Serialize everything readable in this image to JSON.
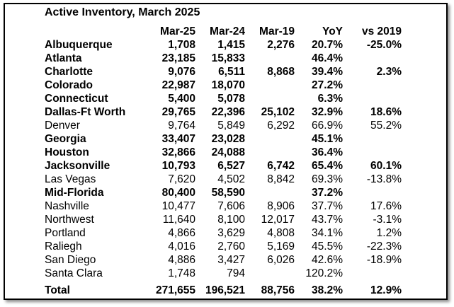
{
  "title": "Active Inventory, March 2025",
  "columns": [
    "Mar-25",
    "Mar-24",
    "Mar-19",
    "YoY",
    "vs 2019"
  ],
  "rows": [
    {
      "name": "Albuquerque",
      "bold": true,
      "mar25": "1,708",
      "mar24": "1,415",
      "mar19": "2,276",
      "yoy": "20.7%",
      "vs2019": "-25.0%"
    },
    {
      "name": "Atlanta",
      "bold": true,
      "mar25": "23,185",
      "mar24": "15,833",
      "mar19": "",
      "yoy": "46.4%",
      "vs2019": ""
    },
    {
      "name": "Charlotte",
      "bold": true,
      "mar25": "9,076",
      "mar24": "6,511",
      "mar19": "8,868",
      "yoy": "39.4%",
      "vs2019": "2.3%"
    },
    {
      "name": "Colorado",
      "bold": true,
      "mar25": "22,987",
      "mar24": "18,070",
      "mar19": "",
      "yoy": "27.2%",
      "vs2019": ""
    },
    {
      "name": "Connecticut",
      "bold": true,
      "mar25": "5,400",
      "mar24": "5,078",
      "mar19": "",
      "yoy": "6.3%",
      "vs2019": ""
    },
    {
      "name": "Dallas-Ft Worth",
      "bold": true,
      "mar25": "29,765",
      "mar24": "22,396",
      "mar19": "25,102",
      "yoy": "32.9%",
      "vs2019": "18.6%"
    },
    {
      "name": "Denver",
      "bold": false,
      "mar25": "9,764",
      "mar24": "5,849",
      "mar19": "6,292",
      "yoy": "66.9%",
      "vs2019": "55.2%"
    },
    {
      "name": "Georgia",
      "bold": true,
      "mar25": "33,407",
      "mar24": "23,028",
      "mar19": "",
      "yoy": "45.1%",
      "vs2019": ""
    },
    {
      "name": "Houston",
      "bold": true,
      "mar25": "32,866",
      "mar24": "24,088",
      "mar19": "",
      "yoy": "36.4%",
      "vs2019": ""
    },
    {
      "name": "Jacksonville",
      "bold": true,
      "mar25": "10,793",
      "mar24": "6,527",
      "mar19": "6,742",
      "yoy": "65.4%",
      "vs2019": "60.1%"
    },
    {
      "name": "Las Vegas",
      "bold": false,
      "mar25": "7,620",
      "mar24": "4,502",
      "mar19": "8,842",
      "yoy": "69.3%",
      "vs2019": "-13.8%"
    },
    {
      "name": "Mid-Florida",
      "bold": true,
      "mar25": "80,400",
      "mar24": "58,590",
      "mar19": "",
      "yoy": "37.2%",
      "vs2019": ""
    },
    {
      "name": "Nashville",
      "bold": false,
      "mar25": "10,477",
      "mar24": "7,606",
      "mar19": "8,906",
      "yoy": "37.7%",
      "vs2019": "17.6%"
    },
    {
      "name": "Northwest",
      "bold": false,
      "mar25": "11,640",
      "mar24": "8,100",
      "mar19": "12,017",
      "yoy": "43.7%",
      "vs2019": "-3.1%"
    },
    {
      "name": "Portland",
      "bold": false,
      "mar25": "4,866",
      "mar24": "3,629",
      "mar19": "4,808",
      "yoy": "34.1%",
      "vs2019": "1.2%"
    },
    {
      "name": "Raliegh",
      "bold": false,
      "mar25": "4,016",
      "mar24": "2,760",
      "mar19": "5,169",
      "yoy": "45.5%",
      "vs2019": "-22.3%"
    },
    {
      "name": "San Diego",
      "bold": false,
      "mar25": "4,886",
      "mar24": "3,427",
      "mar19": "6,026",
      "yoy": "42.6%",
      "vs2019": "-18.9%"
    },
    {
      "name": "Santa Clara",
      "bold": false,
      "mar25": "1,748",
      "mar24": "794",
      "mar19": "",
      "yoy": "120.2%",
      "vs2019": ""
    }
  ],
  "total": {
    "name": "Total",
    "mar25": "271,655",
    "mar24": "196,521",
    "mar19": "88,756",
    "yoy": "38.2%",
    "vs2019": "12.9%"
  }
}
